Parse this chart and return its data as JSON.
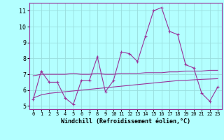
{
  "xlabel": "Windchill (Refroidissement éolien,°C)",
  "background_color": "#b3ffff",
  "grid_color": "#99dddd",
  "line_color": "#993399",
  "spine_color": "#993399",
  "xlim": [
    -0.5,
    23.5
  ],
  "ylim": [
    4.8,
    11.5
  ],
  "xticks": [
    0,
    1,
    2,
    3,
    4,
    5,
    6,
    7,
    8,
    9,
    10,
    11,
    12,
    13,
    14,
    15,
    16,
    17,
    18,
    19,
    20,
    21,
    22,
    23
  ],
  "yticks": [
    5,
    6,
    7,
    8,
    9,
    10,
    11
  ],
  "series1_x": [
    0,
    1,
    2,
    3,
    4,
    5,
    6,
    7,
    8,
    9,
    10,
    11,
    12,
    13,
    14,
    15,
    16,
    17,
    18,
    19,
    20,
    21,
    22,
    23
  ],
  "series1_y": [
    5.4,
    7.2,
    6.5,
    6.5,
    5.5,
    5.1,
    6.6,
    6.6,
    8.1,
    5.9,
    6.6,
    8.4,
    8.3,
    7.8,
    9.4,
    11.0,
    11.2,
    9.7,
    9.5,
    7.6,
    7.4,
    5.8,
    5.3,
    6.2
  ],
  "series2_x": [
    0,
    1,
    2,
    3,
    4,
    5,
    6,
    7,
    8,
    9,
    10,
    11,
    12,
    13,
    14,
    15,
    16,
    17,
    18,
    19,
    20,
    21,
    22,
    23
  ],
  "series2_y": [
    5.5,
    5.7,
    5.8,
    5.85,
    5.9,
    5.95,
    6.0,
    6.05,
    6.1,
    6.15,
    6.2,
    6.25,
    6.3,
    6.35,
    6.4,
    6.45,
    6.5,
    6.55,
    6.6,
    6.62,
    6.65,
    6.68,
    6.7,
    6.72
  ],
  "series3_x": [
    0,
    1,
    2,
    3,
    4,
    5,
    6,
    7,
    8,
    9,
    10,
    11,
    12,
    13,
    14,
    15,
    16,
    17,
    18,
    19,
    20,
    21,
    22,
    23
  ],
  "series3_y": [
    6.9,
    7.0,
    7.0,
    7.0,
    7.0,
    7.05,
    7.0,
    7.0,
    7.05,
    7.0,
    7.0,
    7.05,
    7.05,
    7.05,
    7.1,
    7.1,
    7.1,
    7.15,
    7.15,
    7.2,
    7.2,
    7.2,
    7.25,
    7.25
  ]
}
